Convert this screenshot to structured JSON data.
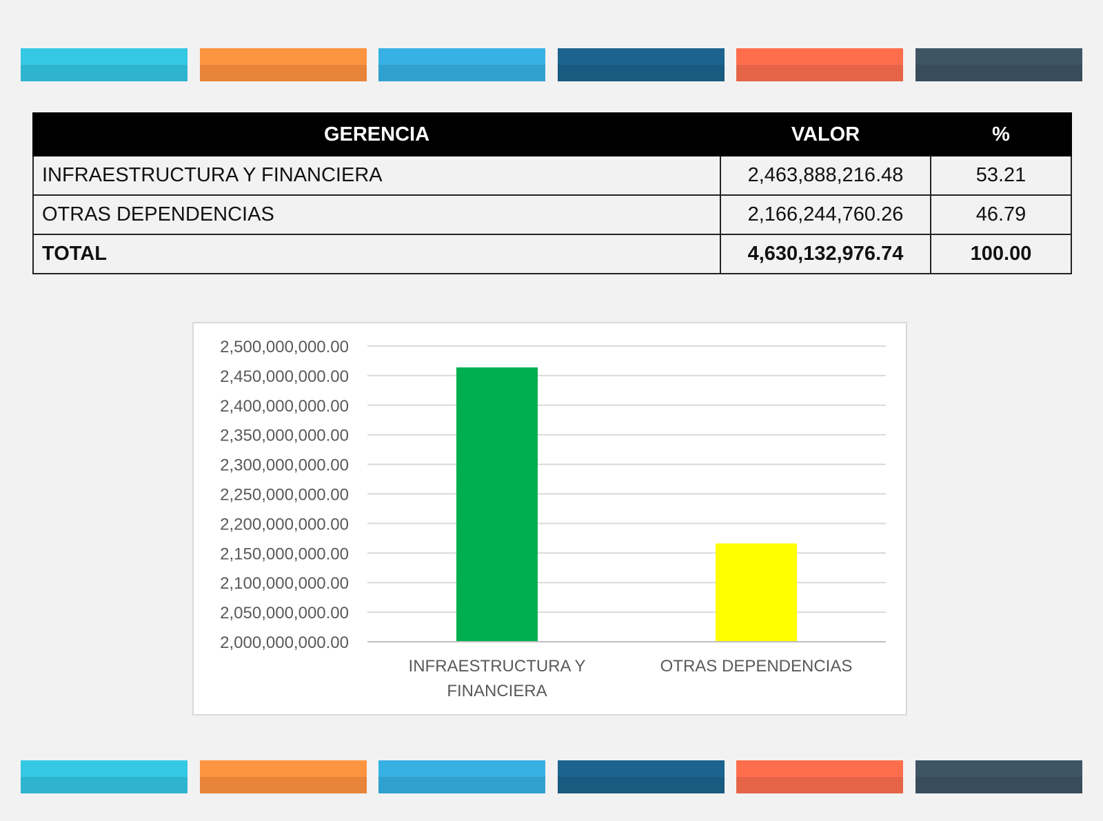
{
  "stripes": [
    {
      "name": "stripe-cyan",
      "hi": "#35c8e4",
      "lo": "#2fb4cf"
    },
    {
      "name": "stripe-orange",
      "hi": "#fd9440",
      "lo": "#e8843a"
    },
    {
      "name": "stripe-blue",
      "hi": "#37b0e4",
      "lo": "#30a0cf"
    },
    {
      "name": "stripe-navy",
      "hi": "#1c648f",
      "lo": "#195a81"
    },
    {
      "name": "stripe-coral",
      "hi": "#fe6e4d",
      "lo": "#e56447"
    },
    {
      "name": "stripe-slate",
      "hi": "#3e5566",
      "lo": "#384d5c"
    }
  ],
  "table": {
    "headers": {
      "gerencia": "GERENCIA",
      "valor": "VALOR",
      "pct": "%"
    },
    "rows": [
      {
        "gerencia": "INFRAESTRUCTURA Y FINANCIERA",
        "valor": "2,463,888,216.48",
        "pct": "53.21"
      },
      {
        "gerencia": "OTRAS DEPENDENCIAS",
        "valor": "2,166,244,760.26",
        "pct": "46.79"
      }
    ],
    "total": {
      "gerencia": "TOTAL",
      "valor": "4,630,132,976.74",
      "pct": "100.00"
    }
  },
  "chart_data": {
    "type": "bar",
    "categories": [
      "INFRAESTRUCTURA Y FINANCIERA",
      "OTRAS DEPENDENCIAS"
    ],
    "category_lines": [
      [
        "INFRAESTRUCTURA Y",
        "FINANCIERA"
      ],
      [
        "OTRAS DEPENDENCIAS"
      ]
    ],
    "values": [
      2463888216.48,
      2166244760.26
    ],
    "bar_colors": [
      "#00b050",
      "#ffff00"
    ],
    "ylim": [
      2000000000,
      2500000000
    ],
    "y_ticks": [
      "2,000,000,000.00",
      "2,050,000,000.00",
      "2,100,000,000.00",
      "2,150,000,000.00",
      "2,200,000,000.00",
      "2,250,000,000.00",
      "2,300,000,000.00",
      "2,350,000,000.00",
      "2,400,000,000.00",
      "2,450,000,000.00",
      "2,500,000,000.00"
    ],
    "y_tick_values": [
      2000000000,
      2050000000,
      2100000000,
      2150000000,
      2200000000,
      2250000000,
      2300000000,
      2350000000,
      2400000000,
      2450000000,
      2500000000
    ],
    "grid": true,
    "legend": "none",
    "title": "",
    "xlabel": "",
    "ylabel": ""
  }
}
